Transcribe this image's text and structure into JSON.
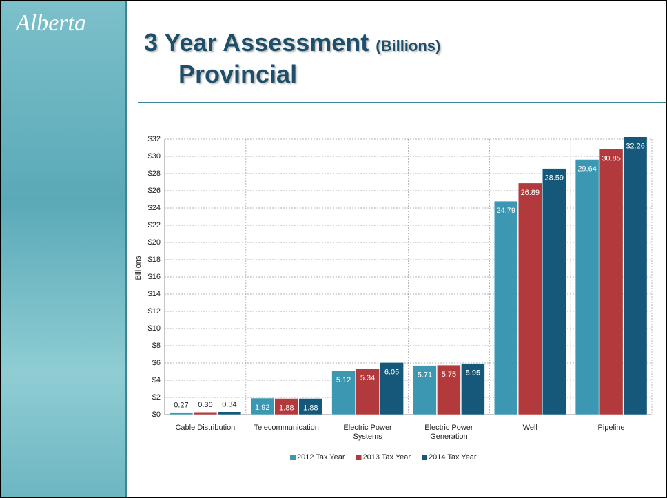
{
  "logo": "Alberta",
  "chart_data": {
    "type": "bar",
    "title": "3 Year Assessment",
    "title_unit": "(Billions)",
    "subtitle": "Provincial",
    "y_label": "Billions",
    "categories": [
      "Cable Distribution",
      "Telecommunication",
      "Electric Power Systems",
      "Electric Power Generation",
      "Well",
      "Pipeline"
    ],
    "series": [
      {
        "name": "2012 Tax Year",
        "color": "#3b97b2",
        "values": [
          0.27,
          1.92,
          5.12,
          5.71,
          24.79,
          29.64
        ],
        "value_labels": [
          "0.27",
          "1.92",
          "5.12",
          "5.71",
          "24.79",
          "29.64"
        ]
      },
      {
        "name": "2013 Tax Year",
        "color": "#b23a3c",
        "values": [
          0.3,
          1.88,
          5.34,
          5.75,
          26.89,
          30.85
        ],
        "value_labels": [
          "0.30",
          "1.88",
          "5.34",
          "5.75",
          "26.89",
          "30.85"
        ]
      },
      {
        "name": "2014 Tax Year",
        "color": "#15587a",
        "values": [
          0.34,
          1.88,
          6.05,
          5.95,
          28.59,
          32.26
        ],
        "value_labels": [
          "0.34",
          "1.88",
          "6.05",
          "5.95",
          "28.59",
          "32.26"
        ]
      }
    ],
    "ylim": [
      0,
      32
    ],
    "yticks": [
      {
        "value": 0,
        "label": "$0"
      },
      {
        "value": 2,
        "label": "$2"
      },
      {
        "value": 4,
        "label": "$4"
      },
      {
        "value": 6,
        "label": "$6"
      },
      {
        "value": 8,
        "label": "$8"
      },
      {
        "value": 10,
        "label": "$10"
      },
      {
        "value": 12,
        "label": "$12"
      },
      {
        "value": 14,
        "label": "$14"
      },
      {
        "value": 16,
        "label": "$16"
      },
      {
        "value": 18,
        "label": "$18"
      },
      {
        "value": 20,
        "label": "$20"
      },
      {
        "value": 22,
        "label": "$22"
      },
      {
        "value": 24,
        "label": "$24"
      },
      {
        "value": 26,
        "label": "$26"
      },
      {
        "value": 28,
        "label": "$28"
      },
      {
        "value": 30,
        "label": "$30"
      },
      {
        "value": 32,
        "label": "$32"
      }
    ],
    "grid": true,
    "legend": "bottom"
  }
}
